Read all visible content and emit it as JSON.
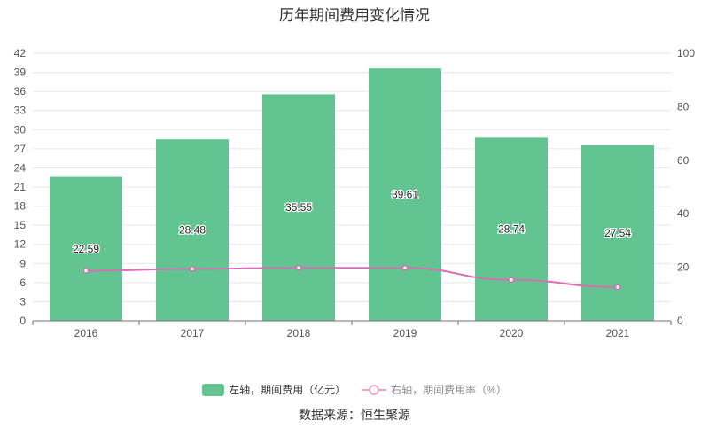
{
  "chart_data": {
    "type": "bar",
    "title": "历年期间费用变化情况",
    "categories": [
      "2016",
      "2017",
      "2018",
      "2019",
      "2020",
      "2021"
    ],
    "series": [
      {
        "name": "左轴，期间费用（亿元）",
        "type": "bar",
        "axis": "left",
        "values": [
          22.59,
          28.48,
          35.55,
          39.61,
          28.74,
          27.54
        ],
        "color": "#62c491",
        "labels": [
          "22.59",
          "28.48",
          "35.55",
          "39.61",
          "28.74",
          "27.54"
        ]
      },
      {
        "name": "右轴，期间费用率（%）",
        "type": "line",
        "axis": "right",
        "values": [
          18.7,
          19.4,
          19.8,
          19.8,
          15.3,
          12.6
        ],
        "color": "#d96fb4"
      }
    ],
    "y_left": {
      "ylim": [
        0,
        42
      ],
      "ticks": [
        "0",
        "3",
        "6",
        "9",
        "12",
        "15",
        "18",
        "21",
        "24",
        "27",
        "30",
        "33",
        "36",
        "39",
        "42"
      ]
    },
    "y_right": {
      "ylim": [
        0,
        100
      ],
      "ticks": [
        "0",
        "20",
        "40",
        "60",
        "80",
        "100"
      ]
    },
    "grid": true,
    "legend_position": "bottom",
    "source": "数据来源：恒生聚源"
  }
}
